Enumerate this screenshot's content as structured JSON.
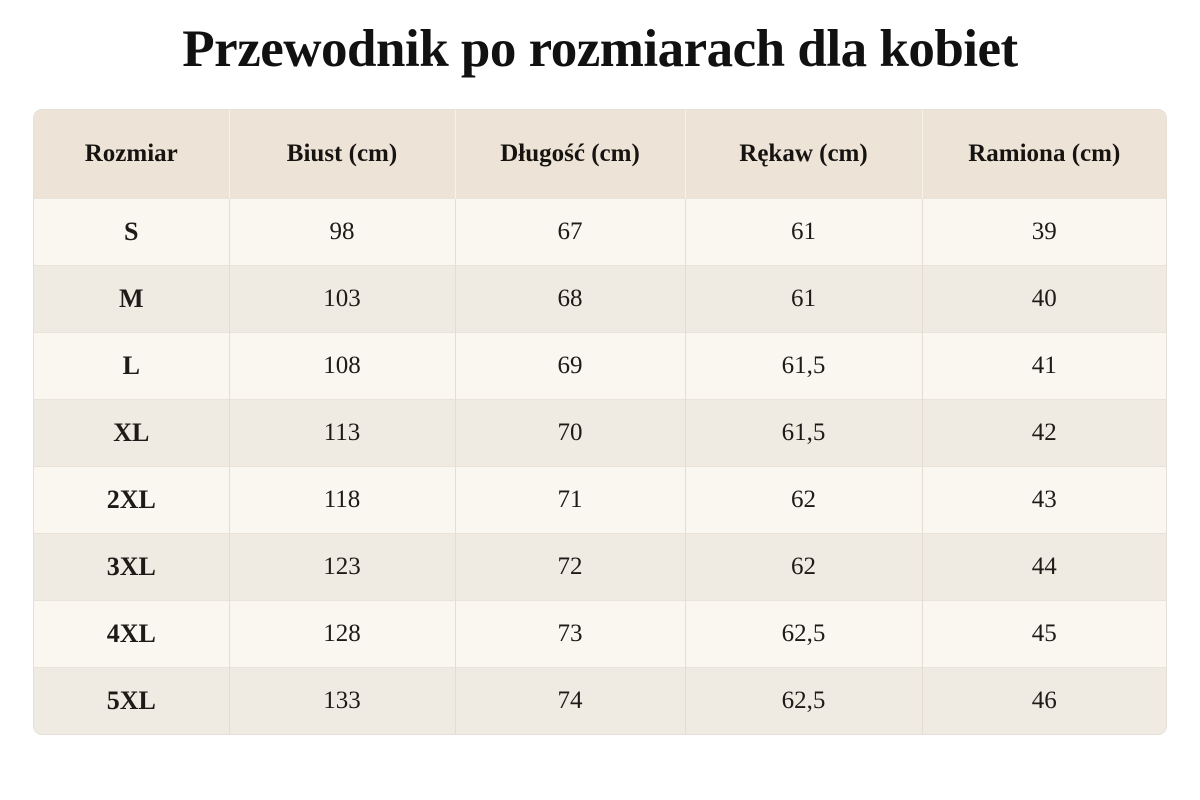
{
  "title": "Przewodnik po rozmiarach dla kobiet",
  "table": {
    "headers": [
      "Rozmiar",
      "Biust (cm)",
      "Długość (cm)",
      "Rękaw (cm)",
      "Ramiona (cm)"
    ],
    "rows": [
      [
        "S",
        "98",
        "67",
        "61",
        "39"
      ],
      [
        "M",
        "103",
        "68",
        "61",
        "40"
      ],
      [
        "L",
        "108",
        "69",
        "61,5",
        "41"
      ],
      [
        "XL",
        "113",
        "70",
        "61,5",
        "42"
      ],
      [
        "2XL",
        "118",
        "71",
        "62",
        "43"
      ],
      [
        "3XL",
        "123",
        "72",
        "62",
        "44"
      ],
      [
        "4XL",
        "128",
        "73",
        "62,5",
        "45"
      ],
      [
        "5XL",
        "133",
        "74",
        "62,5",
        "46"
      ]
    ]
  },
  "colors": {
    "header_bg": "#ede4d7",
    "row_light": "#faf7f1",
    "row_dark": "#f0ebe2",
    "text": "#1a1715"
  }
}
